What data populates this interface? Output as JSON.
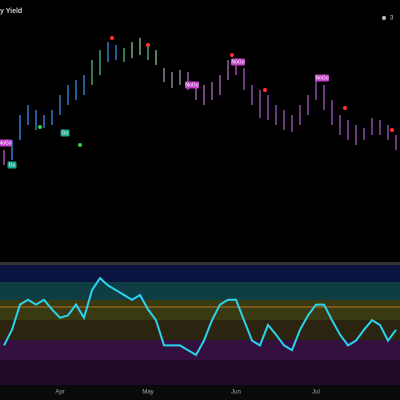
{
  "chart_data": {
    "type": "ohlc",
    "title": "y Yield",
    "badge": "3",
    "categories": [
      null,
      null,
      null,
      null,
      null,
      null,
      null,
      "Apr",
      null,
      null,
      null,
      null,
      null,
      null,
      null,
      null,
      null,
      null,
      "May",
      null,
      null,
      null,
      null,
      null,
      null,
      null,
      null,
      null,
      null,
      "Jun",
      null,
      null,
      null,
      null,
      null,
      null,
      null,
      null,
      null,
      "Jul",
      null,
      null,
      null,
      null,
      null,
      null,
      null,
      null,
      null,
      null
    ],
    "high": [
      105,
      115,
      140,
      150,
      145,
      140,
      145,
      160,
      170,
      175,
      180,
      195,
      205,
      213,
      210,
      207,
      213,
      217,
      210,
      205,
      187,
      183,
      185,
      183,
      170,
      170,
      173,
      180,
      195,
      197,
      187,
      170,
      165,
      160,
      150,
      145,
      140,
      150,
      160,
      175,
      170,
      155,
      140,
      135,
      130,
      127,
      137,
      135,
      130,
      120
    ],
    "low": [
      90,
      95,
      115,
      130,
      125,
      127,
      130,
      140,
      150,
      155,
      160,
      170,
      180,
      193,
      195,
      193,
      197,
      200,
      195,
      190,
      173,
      167,
      170,
      165,
      155,
      150,
      155,
      160,
      175,
      180,
      165,
      150,
      137,
      135,
      130,
      125,
      123,
      130,
      140,
      155,
      145,
      130,
      120,
      115,
      110,
      115,
      120,
      120,
      115,
      105
    ],
    "ylim": [
      0,
      255
    ],
    "colors": [
      "#d05ad8",
      "#3d9bff",
      "#3d9bff",
      "#3d9bff",
      "#3d9bff",
      "#3d9bff",
      "#3d9bff",
      "#3d9bff",
      "#3d9bff",
      "#3d9bff",
      "#3d9bff",
      "#56c8a0",
      "#56c8a0",
      "#3d9bff",
      "#3d9bff",
      "#56c8a0",
      "#8fd6a0",
      "#8fd6a0",
      "#56c8a0",
      "#8fd6a0",
      "#9ea7b3",
      "#9ea7b3",
      "#9ea7b3",
      "#c36fd6",
      "#c36fd6",
      "#c36fd6",
      "#c36fd6",
      "#c36fd6",
      "#c36fd6",
      "#d05ad8",
      "#b25bd0",
      "#b25bd0",
      "#b25bd0",
      "#b25bd0",
      "#b25bd0",
      "#b25bd0",
      "#b25bd0",
      "#b25bd0",
      "#b25bd0",
      "#b25bd0",
      "#b25bd0",
      "#b25bd0",
      "#b25bd0",
      "#b25bd0",
      "#b25bd0",
      "#b25bd0",
      "#b25bd0",
      "#b25bd0",
      "#b25bd0",
      "#b25bd0"
    ],
    "annotations": [
      "NoGo",
      "Go",
      "Go",
      "NoGo",
      "NoGo",
      "NoGo"
    ],
    "oscillator": [
      -1.7,
      -0.4,
      1.7,
      2.1,
      1.7,
      2.1,
      1.3,
      0.6,
      0.8,
      1.7,
      0.6,
      2.9,
      3.9,
      3.3,
      2.9,
      2.5,
      2.1,
      2.5,
      1.3,
      0.4,
      -1.7,
      -1.7,
      -1.7,
      -2.1,
      -2.5,
      -1.3,
      0.4,
      1.7,
      2.1,
      2.1,
      0.4,
      -1.3,
      -1.7,
      0,
      -0.8,
      -1.7,
      -2.1,
      -0.4,
      0.8,
      1.7,
      1.7,
      0.4,
      -0.8,
      -1.7,
      -1.3,
      -0.4,
      0.4,
      0,
      -1.3,
      -0.4
    ],
    "oscillator_color": "#2ad4ee",
    "oscillator_ylim": [
      -5,
      5
    ],
    "reference_line": 1.5
  }
}
